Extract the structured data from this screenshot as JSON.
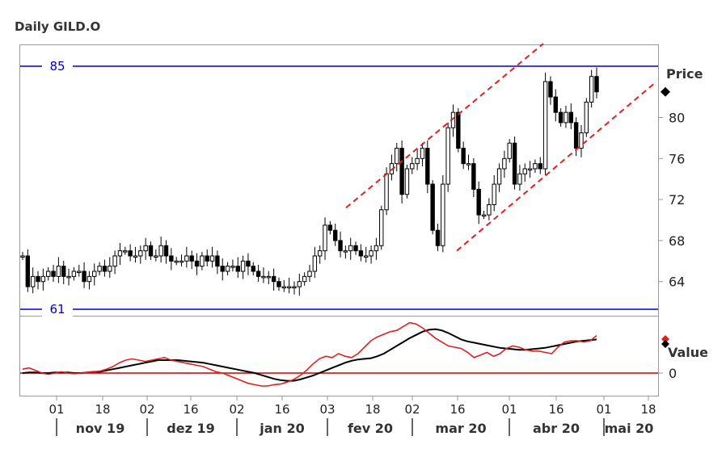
{
  "title": "Daily GILD.O",
  "colors": {
    "candle": "#000000",
    "hline": "#0000cc",
    "channel": "#e02020",
    "signal": "#e02020",
    "macd": "#000000",
    "zero": "#cc0000",
    "frame": "#999999"
  },
  "chart_data": [
    {
      "type": "candlestick",
      "title": "Daily GILD.O",
      "ylabel": "Price",
      "ylim": [
        61,
        86.5
      ],
      "yticks": [
        "64",
        "68",
        "72",
        "76",
        "80"
      ],
      "last_price_marker": 82.5,
      "hlines": [
        {
          "label": "85",
          "value": 85
        },
        {
          "label": "61",
          "value": 61.3
        }
      ],
      "channel": [
        {
          "from": [
            12,
            71.2
          ],
          "to": [
            66,
            87
          ]
        },
        {
          "from": [
            40,
            67.0
          ],
          "to": [
            90,
            83.5
          ]
        }
      ],
      "x_tick_labels": [
        "01",
        "18",
        "02",
        "16",
        "02",
        "16",
        "03",
        "18",
        "02",
        "16",
        "01",
        "16",
        "01",
        "18"
      ],
      "months": [
        "nov 19",
        "dez 19",
        "jan 20",
        "fev 20",
        "mar 20",
        "abr 20",
        "mai 20"
      ],
      "price": [
        66.5,
        63.5,
        64.5,
        64.0,
        64.5,
        65.0,
        64.5,
        65.5,
        64.5,
        64.5,
        65.0,
        65.0,
        64.0,
        64.5,
        65.0,
        65.5,
        65.0,
        65.5,
        66.5,
        67.0,
        67.0,
        66.5,
        66.5,
        67.0,
        67.5,
        66.5,
        66.5,
        67.5,
        66.5,
        66.0,
        66.0,
        66.0,
        66.5,
        66.0,
        65.5,
        66.5,
        66.0,
        66.5,
        65.5,
        65.0,
        65.5,
        65.5,
        65.0,
        66.0,
        65.5,
        65.0,
        64.5,
        64.5,
        64.5,
        64.0,
        63.5,
        63.5,
        63.5,
        63.5,
        64.0,
        64.5,
        65.0,
        66.5,
        67.0,
        69.5,
        69.0,
        68.0,
        67.0,
        67.0,
        67.5,
        67.0,
        66.5,
        66.5,
        67.0,
        67.5,
        71.0,
        74.5,
        75.5,
        77.0,
        72.5,
        75.0,
        75.5,
        76.0,
        77.0,
        73.5,
        69.0,
        67.5,
        73.5,
        79.0,
        80.5,
        77.0,
        75.5,
        75.5,
        73.0,
        70.5,
        70.5,
        71.5,
        73.5,
        75.0,
        76.0,
        77.5,
        73.5,
        74.5,
        75.0,
        75.0,
        75.5,
        75.0,
        83.5,
        82.0,
        80.5,
        79.5,
        80.5,
        79.5,
        77.0,
        78.5,
        81.5,
        84.0,
        82.5
      ],
      "indicator": {
        "ylabel": "Value",
        "yticks": [
          "0"
        ],
        "zero_line": 0,
        "ylim": [
          -1.4,
          4.3
        ],
        "series": [
          {
            "values": [
              0.0,
              0.05,
              0.05,
              0.0,
              0.0,
              0.05,
              0.05,
              0.05,
              0.0,
              0.0,
              0.05,
              0.1,
              0.1,
              0.2,
              0.3,
              0.4,
              0.5,
              0.6,
              0.7,
              0.8,
              0.9,
              1.0,
              1.0,
              1.0,
              1.0,
              0.95,
              0.9,
              0.85,
              0.8,
              0.7,
              0.6,
              0.5,
              0.4,
              0.3,
              0.2,
              0.1,
              0.0,
              -0.15,
              -0.3,
              -0.45,
              -0.55,
              -0.6,
              -0.6,
              -0.5,
              -0.35,
              -0.2,
              0.0,
              0.2,
              0.4,
              0.6,
              0.8,
              0.95,
              1.05,
              1.1,
              1.15,
              1.3,
              1.5,
              1.8,
              2.1,
              2.4,
              2.7,
              2.95,
              3.2,
              3.35,
              3.4,
              3.3,
              3.1,
              2.85,
              2.6,
              2.45,
              2.35,
              2.25,
              2.15,
              2.05,
              1.95,
              1.9,
              1.85,
              1.8,
              1.8,
              1.85,
              1.9,
              1.95,
              2.05,
              2.15,
              2.25,
              2.35,
              2.45,
              2.5,
              2.55,
              2.6
            ]
          },
          {
            "values": [
              0.3,
              0.4,
              0.2,
              0.0,
              -0.1,
              0.0,
              0.1,
              0.0,
              -0.05,
              0.0,
              0.05,
              0.1,
              0.15,
              0.3,
              0.5,
              0.8,
              1.0,
              1.1,
              1.0,
              0.9,
              1.0,
              1.1,
              1.2,
              1.0,
              0.9,
              0.8,
              0.7,
              0.6,
              0.5,
              0.3,
              0.1,
              0.0,
              -0.2,
              -0.4,
              -0.6,
              -0.8,
              -0.9,
              -1.0,
              -1.0,
              -0.9,
              -0.85,
              -0.7,
              -0.5,
              -0.2,
              0.2,
              0.7,
              1.1,
              1.3,
              1.2,
              1.5,
              1.3,
              1.2,
              1.5,
              2.0,
              2.5,
              2.8,
              3.0,
              3.2,
              3.3,
              3.6,
              3.9,
              3.8,
              3.5,
              3.1,
              2.7,
              2.4,
              2.1,
              2.0,
              1.9,
              1.6,
              1.2,
              1.4,
              1.6,
              1.3,
              1.5,
              1.9,
              2.1,
              2.0,
              1.8,
              1.7,
              1.7,
              1.6,
              1.5,
              2.0,
              2.4,
              2.5,
              2.5,
              2.4,
              2.5,
              2.9
            ]
          }
        ]
      }
    }
  ]
}
